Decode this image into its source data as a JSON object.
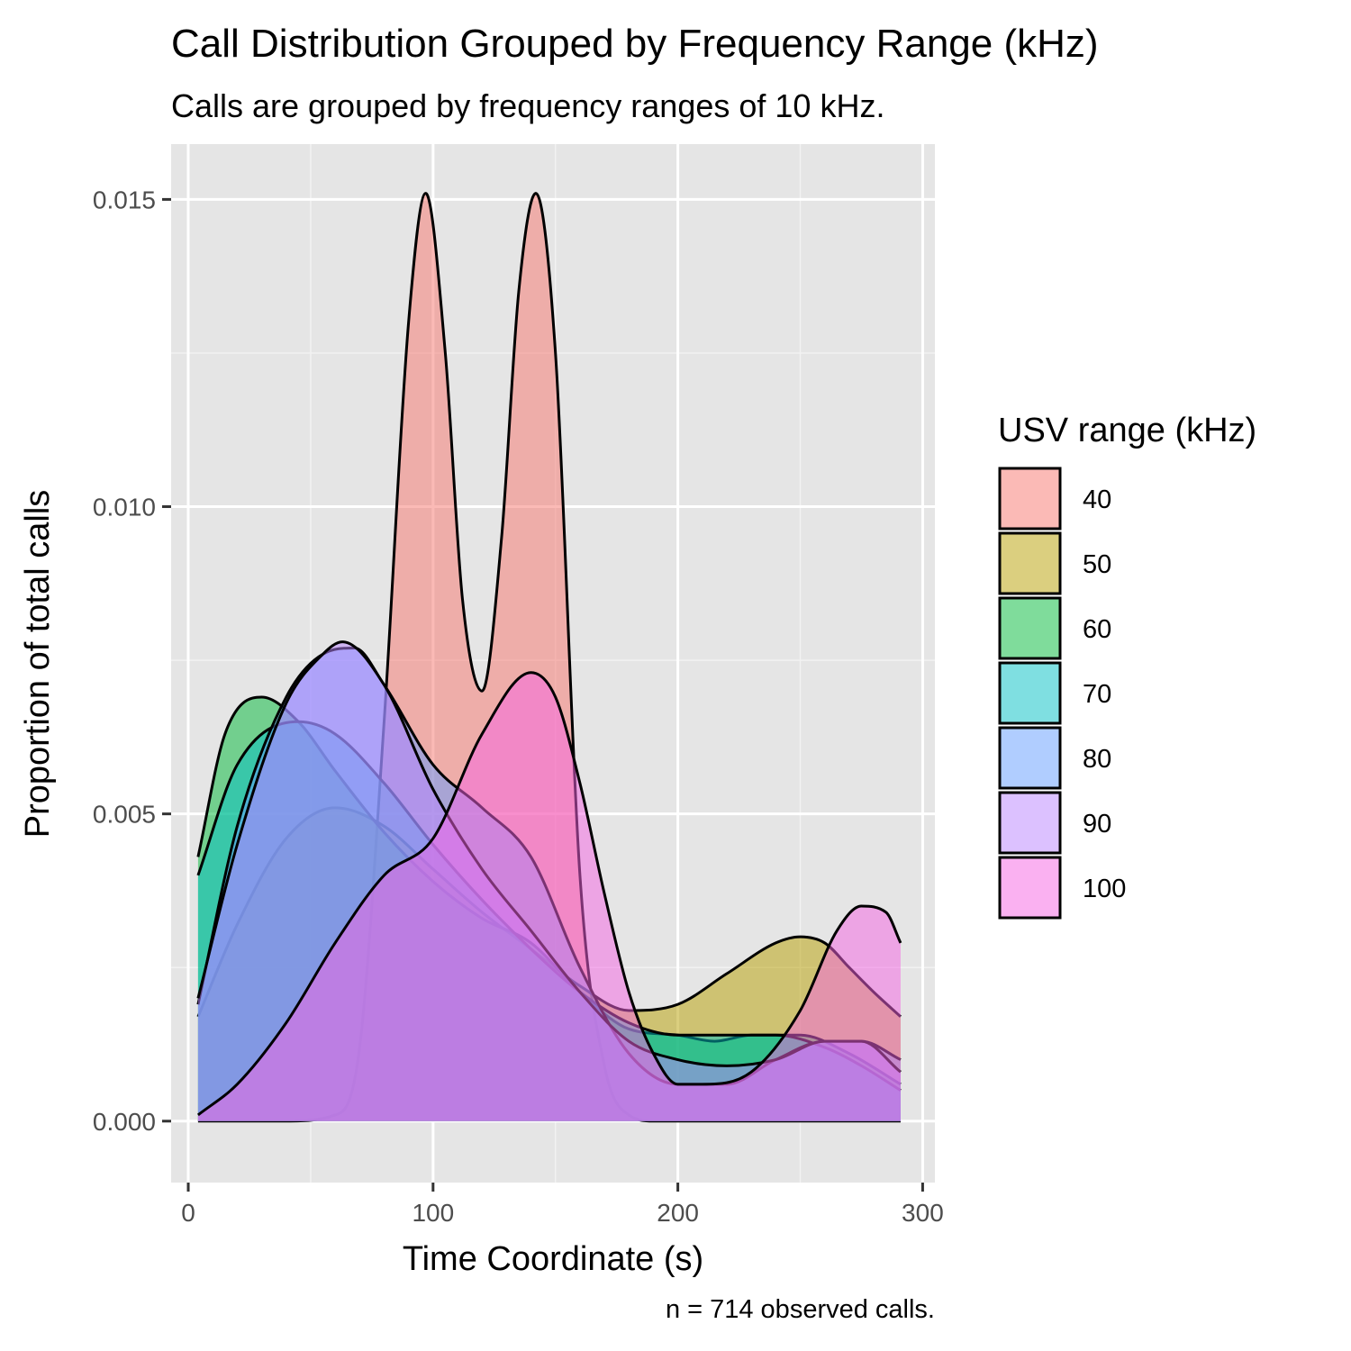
{
  "chart_data": {
    "type": "area",
    "title": "Call Distribution Grouped by Frequency Range (kHz)",
    "subtitle": "Calls are grouped by frequency ranges of 10 kHz.",
    "caption": "n = 714 observed calls.",
    "xlabel": "Time Coordinate (s)",
    "ylabel": "Proportion of total calls",
    "xlim": [
      -7,
      305
    ],
    "ylim": [
      -0.001,
      0.0159
    ],
    "x_ticks": [
      0,
      100,
      200,
      300
    ],
    "x_tick_labels": [
      "0",
      "100",
      "200",
      "300"
    ],
    "y_ticks": [
      0,
      0.005,
      0.01,
      0.015
    ],
    "y_tick_labels": [
      "0.000",
      "0.005",
      "0.010",
      "0.015"
    ],
    "grid": true,
    "legend": {
      "title": "USV range (kHz)",
      "position": "right"
    },
    "series": [
      {
        "name": "40",
        "color": "#F8766D",
        "x": [
          4,
          40,
          60,
          70,
          80,
          90,
          97,
          105,
          112,
          120,
          128,
          135,
          142,
          150,
          160,
          170,
          180,
          190,
          200,
          210,
          220,
          230,
          240,
          250,
          260,
          270,
          280,
          291
        ],
        "y": [
          0,
          0,
          0.0001,
          0.0012,
          0.0065,
          0.013,
          0.0151,
          0.0125,
          0.0085,
          0.007,
          0.0095,
          0.0135,
          0.0151,
          0.0125,
          0.004,
          0.0009,
          0.0001,
          0,
          0,
          0,
          0,
          0,
          0,
          0,
          0,
          0,
          0,
          0
        ]
      },
      {
        "name": "50",
        "color": "#B79F00",
        "x": [
          4,
          20,
          40,
          60,
          80,
          100,
          120,
          140,
          160,
          180,
          200,
          220,
          240,
          250,
          260,
          270,
          280,
          291
        ],
        "y": [
          0.0017,
          0.0032,
          0.0046,
          0.0051,
          0.0048,
          0.0041,
          0.0034,
          0.0028,
          0.0022,
          0.0018,
          0.0019,
          0.0024,
          0.0029,
          0.003,
          0.0029,
          0.0025,
          0.0021,
          0.0017
        ]
      },
      {
        "name": "60",
        "color": "#00BA38",
        "x": [
          4,
          15,
          30,
          45,
          60,
          80,
          100,
          120,
          140,
          160,
          180,
          200,
          215,
          230,
          250,
          270,
          291
        ],
        "y": [
          0.0043,
          0.0063,
          0.0069,
          0.0065,
          0.0057,
          0.0047,
          0.0039,
          0.0033,
          0.0029,
          0.0021,
          0.0015,
          0.0014,
          0.0013,
          0.0014,
          0.0014,
          0.0011,
          0.0006
        ]
      },
      {
        "name": "70",
        "color": "#00BFC4",
        "x": [
          4,
          20,
          45,
          60,
          80,
          100,
          120,
          140,
          160,
          180,
          200,
          220,
          240,
          260,
          275,
          291
        ],
        "y": [
          0.004,
          0.0058,
          0.0065,
          0.0063,
          0.0055,
          0.0045,
          0.0036,
          0.0028,
          0.0021,
          0.0016,
          0.0014,
          0.0014,
          0.0014,
          0.0012,
          0.0009,
          0.0005
        ]
      },
      {
        "name": "80",
        "color": "#619CFF",
        "x": [
          4,
          20,
          40,
          55,
          68,
          80,
          100,
          120,
          140,
          160,
          180,
          200,
          220,
          240,
          260,
          275,
          291
        ],
        "y": [
          0.0019,
          0.0048,
          0.0069,
          0.0076,
          0.0077,
          0.0071,
          0.0058,
          0.0051,
          0.0043,
          0.0025,
          0.0011,
          0.0006,
          0.0006,
          0.001,
          0.0013,
          0.0013,
          0.001
        ]
      },
      {
        "name": "90",
        "color": "#B983FF",
        "x": [
          4,
          20,
          40,
          55,
          63,
          80,
          100,
          120,
          140,
          160,
          180,
          200,
          220,
          240,
          260,
          275,
          291
        ],
        "y": [
          0.002,
          0.0045,
          0.0068,
          0.0076,
          0.0078,
          0.0071,
          0.0054,
          0.0041,
          0.0031,
          0.0021,
          0.0013,
          0.001,
          0.0009,
          0.001,
          0.0013,
          0.0013,
          0.0008
        ]
      },
      {
        "name": "100",
        "color": "#F564E3",
        "x": [
          4,
          20,
          40,
          60,
          80,
          100,
          120,
          140,
          150,
          160,
          170,
          180,
          190,
          200,
          210,
          230,
          250,
          265,
          275,
          285,
          291
        ],
        "y": [
          0.0001,
          0.0006,
          0.0016,
          0.0029,
          0.004,
          0.0046,
          0.0063,
          0.0073,
          0.0069,
          0.0055,
          0.0037,
          0.0021,
          0.0011,
          0.0006,
          0.0006,
          0.0008,
          0.0018,
          0.0031,
          0.0035,
          0.0034,
          0.0029
        ]
      }
    ]
  }
}
